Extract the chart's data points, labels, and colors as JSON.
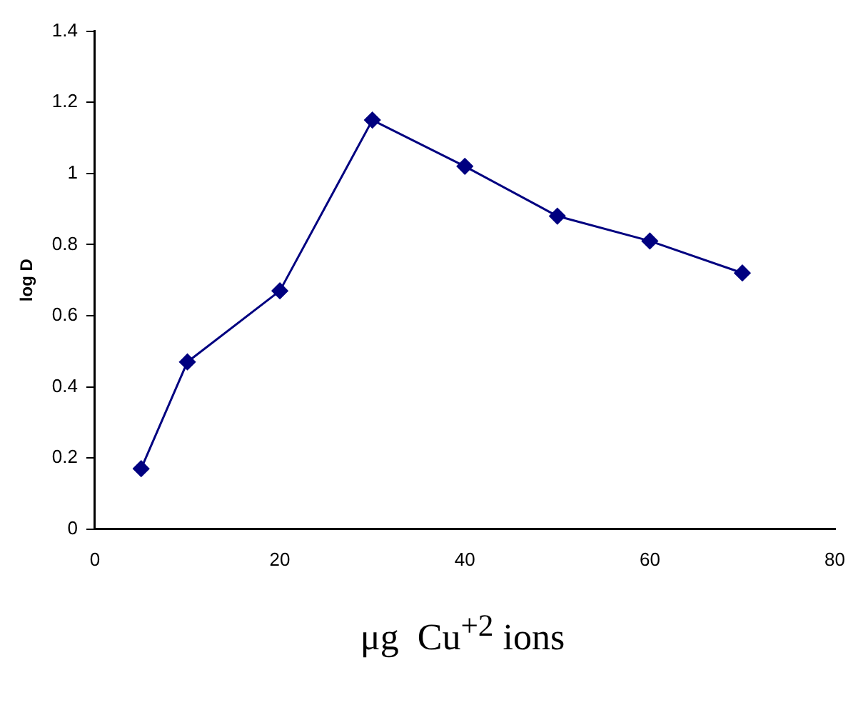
{
  "chart_data": {
    "type": "line",
    "xlabel": "μg  Cu$^{+2}$ ions",
    "ylabel": "log D",
    "x": [
      5,
      10,
      20,
      30,
      40,
      50,
      60,
      70
    ],
    "series": [
      {
        "color": "#000080",
        "values": [
          0.17,
          0.47,
          0.67,
          1.15,
          1.02,
          0.88,
          0.81,
          0.72
        ]
      }
    ],
    "xlim": [
      0,
      80
    ],
    "xticks": [
      0,
      20,
      40,
      60,
      80
    ],
    "ylim": [
      0,
      1.4
    ],
    "yticks": [
      0,
      0.2,
      0.4,
      0.6,
      0.8,
      1,
      1.2,
      1.4
    ],
    "grid": false,
    "legend": false,
    "marker": "diamond",
    "line_style": "solid"
  }
}
